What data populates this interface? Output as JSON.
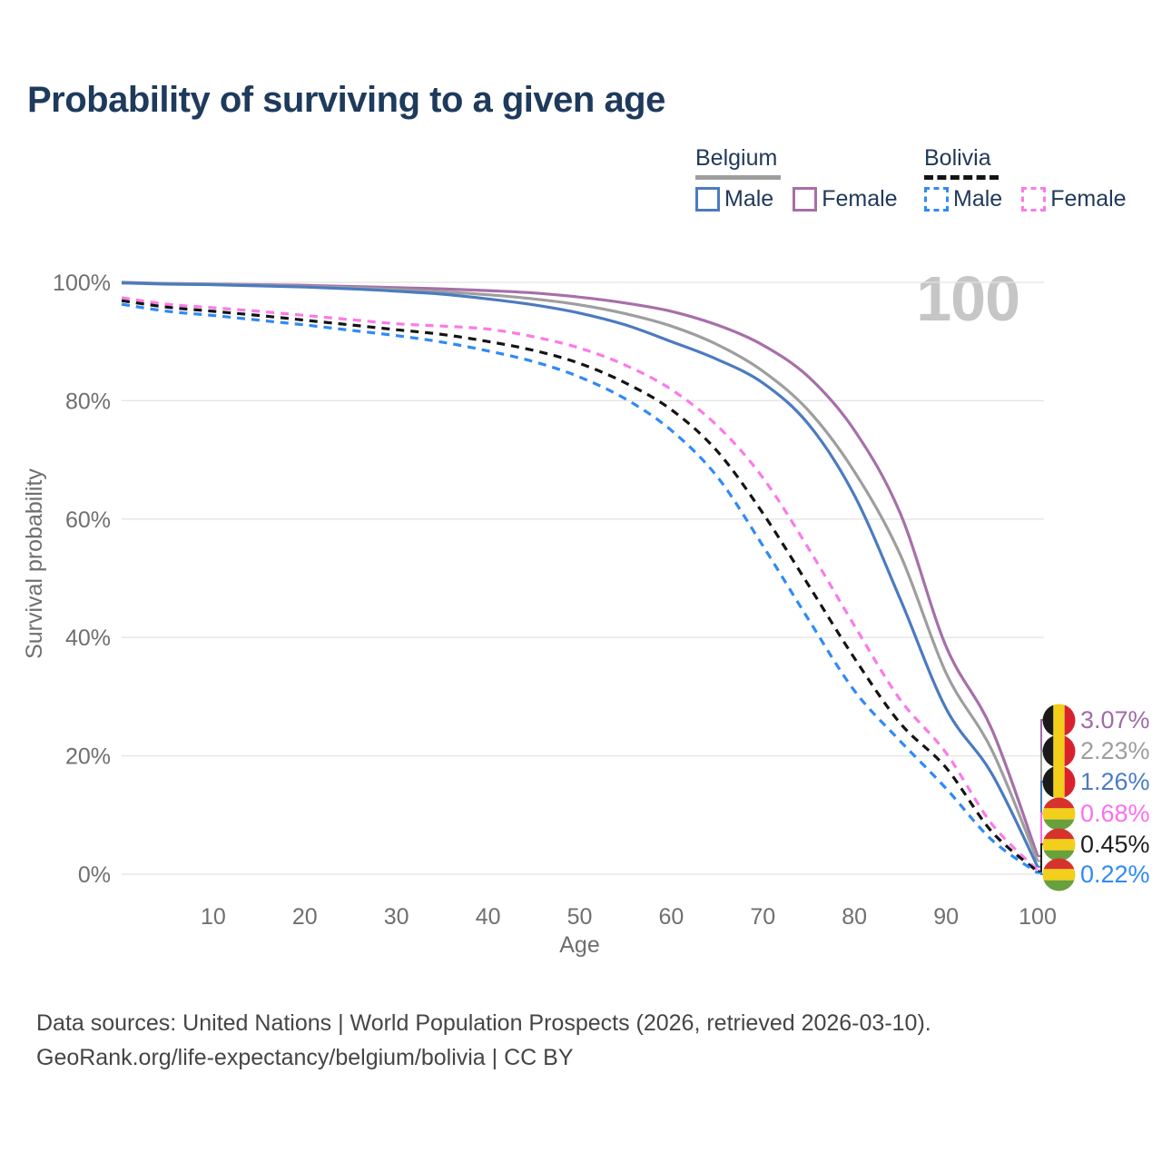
{
  "title": "Probability of surviving to a given age",
  "legend": {
    "groups": [
      {
        "id": "belgium",
        "label": "Belgium",
        "line_style": "solid",
        "underline_color": "#9e9e9e",
        "items": [
          {
            "label": "Male",
            "color": "#4b7bc0"
          },
          {
            "label": "Female",
            "color": "#a76fa8"
          }
        ]
      },
      {
        "id": "bolivia",
        "label": "Bolivia",
        "line_style": "dashed",
        "underline_color": "#141414",
        "items": [
          {
            "label": "Male",
            "color": "#2f8af5"
          },
          {
            "label": "Female",
            "color": "#fb7ae8"
          }
        ]
      }
    ]
  },
  "chart_data": {
    "type": "line",
    "title": "Probability of surviving to a given age",
    "xlabel": "Age",
    "ylabel": "Survival probability",
    "xlim": [
      0,
      100
    ],
    "ylim": [
      0,
      100
    ],
    "grid": true,
    "watermark": "100",
    "x_ticks": [
      10,
      20,
      30,
      40,
      50,
      60,
      70,
      80,
      90,
      100
    ],
    "y_tick_values": [
      0,
      20,
      40,
      60,
      80,
      100
    ],
    "y_tick_labels": [
      "0%",
      "20%",
      "40%",
      "60%",
      "80%",
      "100%"
    ],
    "x": [
      0,
      5,
      10,
      15,
      20,
      25,
      30,
      35,
      40,
      45,
      50,
      55,
      60,
      65,
      70,
      75,
      80,
      85,
      90,
      95,
      100
    ],
    "series": [
      {
        "name": "Belgium Female",
        "country": "Belgium",
        "sex": "Female",
        "dashed": false,
        "color": "#a76fa8",
        "label_color": "#a06ba8",
        "flag": "Belgium",
        "end_label": "3.07%",
        "end_value": 3.07,
        "values": [
          100,
          99.8,
          99.7,
          99.6,
          99.5,
          99.3,
          99.1,
          98.9,
          98.6,
          98.2,
          97.5,
          96.5,
          95.1,
          92.8,
          89.4,
          84.0,
          75.0,
          61.0,
          38.5,
          24.5,
          3.07
        ]
      },
      {
        "name": "Belgium",
        "country": "Belgium",
        "sex": "Both",
        "dashed": false,
        "color": "#9e9e9e",
        "label_color": "#9e9e9e",
        "flag": "Belgium",
        "end_label": "2.23%",
        "end_value": 2.23,
        "values": [
          99.9,
          99.8,
          99.7,
          99.5,
          99.3,
          99.1,
          98.8,
          98.4,
          97.9,
          97.2,
          96.2,
          94.7,
          92.6,
          89.5,
          85.0,
          78.3,
          68.0,
          54.0,
          34.0,
          21.0,
          2.23
        ]
      },
      {
        "name": "Belgium Male",
        "country": "Belgium",
        "sex": "Male",
        "dashed": false,
        "color": "#4b7bc0",
        "label_color": "#4a7cc2",
        "flag": "Belgium",
        "end_label": "1.26%",
        "end_value": 1.26,
        "values": [
          99.9,
          99.7,
          99.6,
          99.4,
          99.2,
          98.9,
          98.5,
          98.0,
          97.2,
          96.2,
          94.8,
          92.8,
          90.0,
          87.0,
          83.0,
          76.0,
          64.0,
          46.5,
          28.0,
          17.0,
          1.26
        ]
      },
      {
        "name": "Bolivia Female",
        "country": "Bolivia",
        "sex": "Female",
        "dashed": true,
        "color": "#fb7ae8",
        "label_color": "#fb6ff0",
        "flag": "Bolivia",
        "end_label": "0.68%",
        "end_value": 0.68,
        "values": [
          97.4,
          96.3,
          95.7,
          95.1,
          94.4,
          93.7,
          93.0,
          92.6,
          92.1,
          90.8,
          88.9,
          86.0,
          81.9,
          75.8,
          67.0,
          55.0,
          42.0,
          29.5,
          20.5,
          8.5,
          0.68
        ]
      },
      {
        "name": "Bolivia",
        "country": "Bolivia",
        "sex": "Both",
        "dashed": true,
        "color": "#141414",
        "label_color": "#1f1f1f",
        "flag": "Bolivia",
        "end_label": "0.45%",
        "end_value": 0.45,
        "values": [
          96.9,
          95.8,
          95.1,
          94.4,
          93.6,
          92.8,
          92.0,
          91.2,
          90.0,
          88.5,
          86.3,
          83.0,
          78.5,
          71.5,
          61.0,
          48.8,
          36.5,
          25.5,
          18.0,
          7.2,
          0.45
        ]
      },
      {
        "name": "Bolivia Male",
        "country": "Bolivia",
        "sex": "Male",
        "dashed": true,
        "color": "#2f8af5",
        "label_color": "#2f8af5",
        "flag": "Bolivia",
        "end_label": "0.22%",
        "end_value": 0.22,
        "values": [
          96.3,
          95.1,
          94.4,
          93.6,
          92.8,
          91.9,
          91.0,
          89.9,
          88.4,
          86.6,
          84.0,
          80.3,
          75.0,
          67.2,
          55.5,
          43.0,
          31.0,
          22.5,
          14.5,
          5.8,
          0.22
        ]
      }
    ]
  },
  "flags": {
    "Belgium": {
      "orientation": "vertical",
      "colors": [
        "#1a1a1a",
        "#f2cf1b",
        "#d8232e"
      ]
    },
    "Bolivia": {
      "orientation": "horizontal",
      "colors": [
        "#d5332c",
        "#f2cf1b",
        "#68a03c"
      ]
    }
  },
  "footer": {
    "line1": "Data sources: United Nations | World Population Prospects (2026, retrieved 2026-03-10).",
    "line2": "GeoRank.org/life-expectancy/belgium/bolivia | CC BY"
  },
  "colors": {
    "title": "#1e3a5c",
    "legend_text": "#21395a",
    "axis_text": "#6f6f6f",
    "gridline": "#e4e4e4",
    "watermark": "#c6c6c6",
    "footer_text": "#454545"
  }
}
